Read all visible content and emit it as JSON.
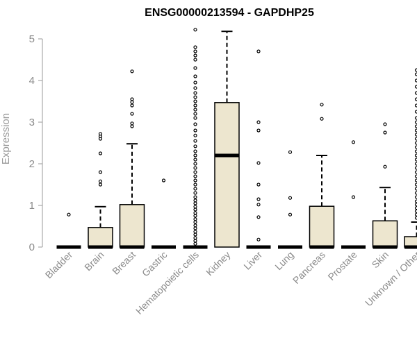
{
  "chart_data": {
    "type": "box",
    "title": "ENSG00000213594 - GAPDHP25",
    "ylabel": "Expression",
    "xlabel": "",
    "ylim": [
      0,
      5.2
    ],
    "yticks": [
      "0",
      "1",
      "2",
      "3",
      "4",
      "5"
    ],
    "colors": {
      "box_fill": "#ede6cf",
      "box_stroke": "#000000",
      "axis": "#999999"
    },
    "categories": [
      "Bladder",
      "Brain",
      "Breast",
      "Gastric",
      "Hematopoietic cells",
      "Kidney",
      "Liver",
      "Lung",
      "Pancreas",
      "Prostate",
      "Skin",
      "Unknown / Other"
    ],
    "boxes": [
      {
        "category": "Bladder",
        "min": 0,
        "q1": 0,
        "median": 0,
        "q3": 0,
        "max": 0,
        "outliers": [
          0.78
        ]
      },
      {
        "category": "Brain",
        "min": 0,
        "q1": 0,
        "median": 0,
        "q3": 0.47,
        "max": 0.97,
        "outliers": [
          1.5,
          1.58,
          1.8,
          2.25,
          2.6,
          2.66,
          2.72
        ]
      },
      {
        "category": "Breast",
        "min": 0,
        "q1": 0,
        "median": 0,
        "q3": 1.02,
        "max": 2.48,
        "outliers": [
          2.9,
          2.97,
          3.2,
          3.4,
          3.48,
          3.55,
          4.22
        ]
      },
      {
        "category": "Gastric",
        "min": 0,
        "q1": 0,
        "median": 0,
        "q3": 0,
        "max": 0,
        "outliers": [
          1.6
        ]
      },
      {
        "category": "Hematopoietic cells",
        "min": 0,
        "q1": 0,
        "median": 0,
        "q3": 0,
        "max": 0,
        "outliers": [
          0.08,
          0.15,
          0.22,
          0.3,
          0.37,
          0.45,
          0.52,
          0.6,
          0.67,
          0.75,
          0.82,
          0.9,
          0.97,
          1.05,
          1.12,
          1.2,
          1.3,
          1.4,
          1.5,
          1.6,
          1.7,
          1.8,
          1.9,
          2.0,
          2.1,
          2.2,
          2.3,
          2.42,
          2.55,
          2.68,
          2.8,
          2.95,
          3.1,
          3.2,
          3.3,
          3.4,
          3.5,
          3.6,
          3.7,
          3.82,
          3.95,
          4.1,
          4.3,
          4.5,
          4.6,
          4.7,
          4.8,
          5.22
        ]
      },
      {
        "category": "Kidney",
        "min": 0,
        "q1": 0,
        "median": 2.2,
        "q3": 3.47,
        "max": 5.18,
        "outliers": []
      },
      {
        "category": "Liver",
        "min": 0,
        "q1": 0,
        "median": 0,
        "q3": 0,
        "max": 0,
        "outliers": [
          0.18,
          0.72,
          1.02,
          1.15,
          1.5,
          2.02,
          2.8,
          3.0,
          4.7
        ]
      },
      {
        "category": "Lung",
        "min": 0,
        "q1": 0,
        "median": 0,
        "q3": 0,
        "max": 0,
        "outliers": [
          0.78,
          1.18,
          2.28
        ]
      },
      {
        "category": "Pancreas",
        "min": 0,
        "q1": 0,
        "median": 0,
        "q3": 0.98,
        "max": 2.2,
        "outliers": [
          3.08,
          3.42
        ]
      },
      {
        "category": "Prostate",
        "min": 0,
        "q1": 0,
        "median": 0,
        "q3": 0,
        "max": 0,
        "outliers": [
          1.2,
          2.52
        ]
      },
      {
        "category": "Skin",
        "min": 0,
        "q1": 0,
        "median": 0,
        "q3": 0.63,
        "max": 1.43,
        "outliers": [
          1.93,
          2.75,
          2.95
        ]
      },
      {
        "category": "Unknown / Other",
        "min": 0,
        "q1": 0,
        "median": 0,
        "q3": 0.25,
        "max": 0.6,
        "outliers": [
          0.7,
          0.78,
          0.86,
          0.94,
          1.02,
          1.1,
          1.2,
          1.3,
          1.4,
          1.5,
          1.6,
          1.7,
          1.8,
          1.9,
          2.0,
          2.1,
          2.2,
          2.3,
          2.4,
          2.5,
          2.6,
          2.7,
          2.8,
          2.9,
          3.0,
          3.1,
          3.25,
          3.4,
          3.55,
          3.7,
          3.85,
          4.0,
          4.15,
          4.25
        ]
      }
    ]
  }
}
